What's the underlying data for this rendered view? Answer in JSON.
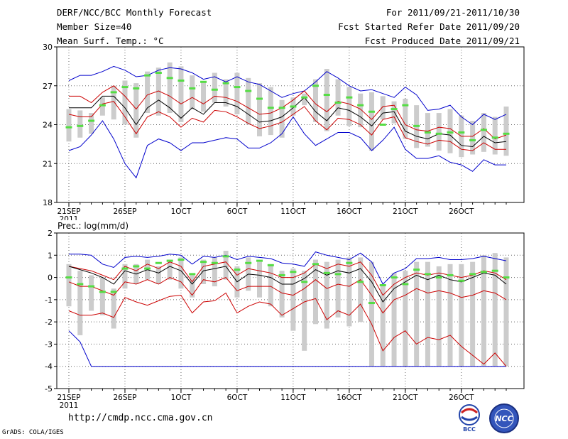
{
  "header": {
    "title": "DERF/NCC/BCC Monthly Forecast",
    "member_size": "Member Size=40",
    "variable": "Mean Surf. Temp.: °C",
    "period": "For 2011/09/21-2011/10/30",
    "started": "Fcst Started Refer Date 2011/09/20",
    "produced": "Fcst Produced Date 2011/09/21"
  },
  "footer": {
    "url": "http://cmdp.ncc.cma.gov.cn",
    "credit": "GrADS: COLA/IGES",
    "logo_bcc_text": "BCC",
    "logo_ncc_text": "NCC"
  },
  "colors": {
    "envelope": "#0000cc",
    "spread": "#cc0000",
    "ensemble_mean": "#000000",
    "member_box": "#cccccc",
    "median": "#55dd44",
    "grid": "#666666"
  },
  "chart_data": [
    {
      "type": "box",
      "id": "temperature",
      "title": "Mean Surf. Temp.: °C",
      "x_labels": [
        "21SEP",
        "26SEP",
        "1OCT",
        "6OCT",
        "11OCT",
        "16OCT",
        "21OCT",
        "26OCT"
      ],
      "x_label_days": [
        0,
        5,
        10,
        15,
        20,
        25,
        30,
        35
      ],
      "x_year_label": "2011",
      "ylim": [
        18,
        30
      ],
      "yticks": [
        18,
        21,
        24,
        27,
        30
      ],
      "days": 40,
      "max": [
        27.4,
        27.8,
        27.8,
        28.1,
        28.5,
        28.2,
        27.7,
        27.8,
        28.2,
        28.4,
        28.3,
        28.0,
        27.5,
        27.7,
        27.3,
        27.7,
        27.3,
        27.1,
        26.6,
        26.1,
        26.4,
        26.6,
        27.3,
        28.1,
        27.6,
        27.0,
        26.6,
        26.7,
        26.4,
        26.1,
        26.9,
        26.3,
        25.1,
        25.2,
        25.5,
        24.6,
        24.0,
        24.8,
        24.4,
        24.8
      ],
      "upper": [
        26.2,
        26.2,
        25.7,
        26.5,
        27.0,
        26.2,
        25.2,
        26.3,
        26.6,
        26.2,
        25.6,
        26.1,
        25.6,
        26.2,
        26.1,
        25.8,
        25.3,
        24.8,
        24.9,
        25.3,
        25.9,
        26.6,
        25.6,
        25.0,
        25.8,
        25.6,
        25.2,
        24.4,
        25.4,
        25.5,
        24.0,
        23.6,
        23.5,
        23.8,
        23.7,
        23.1,
        23.1,
        23.7,
        22.9,
        23.2
      ],
      "mean": [
        25.3,
        25.3,
        25.3,
        26.2,
        26.2,
        25.3,
        24.0,
        25.3,
        25.9,
        25.3,
        24.5,
        25.3,
        24.8,
        25.7,
        25.7,
        25.4,
        24.8,
        24.2,
        24.3,
        24.6,
        25.3,
        26.1,
        25.0,
        24.3,
        25.3,
        25.1,
        24.6,
        23.9,
        24.9,
        25.0,
        23.5,
        23.1,
        22.9,
        23.3,
        23.2,
        22.4,
        22.3,
        23.1,
        22.6,
        22.7
      ],
      "lower": [
        24.8,
        24.6,
        24.6,
        25.6,
        25.8,
        24.6,
        23.3,
        24.6,
        25.0,
        24.6,
        23.8,
        24.5,
        24.2,
        25.1,
        25.0,
        24.6,
        24.1,
        23.7,
        23.9,
        24.2,
        24.8,
        25.4,
        24.3,
        23.6,
        24.5,
        24.4,
        24.0,
        23.2,
        24.4,
        24.6,
        23.0,
        22.7,
        22.5,
        22.8,
        22.7,
        22.1,
        22.0,
        22.6,
        22.1,
        22.1
      ],
      "min": [
        22.0,
        22.3,
        23.2,
        24.3,
        22.9,
        21.0,
        19.9,
        22.4,
        22.9,
        22.6,
        22.0,
        22.6,
        22.6,
        22.8,
        23.0,
        22.9,
        22.2,
        22.2,
        22.6,
        23.3,
        24.6,
        23.3,
        22.4,
        22.9,
        23.4,
        23.4,
        23.0,
        22.0,
        22.8,
        23.8,
        22.1,
        21.4,
        21.4,
        21.6,
        21.1,
        20.9,
        20.4,
        21.3,
        20.9,
        20.9
      ],
      "box_hi": [
        25.2,
        25.1,
        24.9,
        26.1,
        27.0,
        27.4,
        27.2,
        28.1,
        28.4,
        28.8,
        28.5,
        27.8,
        27.3,
        28.0,
        27.5,
        28.0,
        27.6,
        27.2,
        26.9,
        25.9,
        26.1,
        26.4,
        27.5,
        28.3,
        27.5,
        26.9,
        26.4,
        26.5,
        26.2,
        25.8,
        26.0,
        25.5,
        24.9,
        24.9,
        25.2,
        24.7,
        24.3,
        24.9,
        24.6,
        25.4
      ],
      "box_lo": [
        22.7,
        23.0,
        23.3,
        24.7,
        24.4,
        24.0,
        23.0,
        24.9,
        24.7,
        24.9,
        24.2,
        25.2,
        25.0,
        25.7,
        25.4,
        24.8,
        24.0,
        23.1,
        23.2,
        23.0,
        24.7,
        25.5,
        24.2,
        23.5,
        24.7,
        23.9,
        23.8,
        22.0,
        24.4,
        24.1,
        22.9,
        22.2,
        22.3,
        22.0,
        21.8,
        21.5,
        21.7,
        21.9,
        21.7,
        21.6
      ],
      "median": [
        23.8,
        23.9,
        24.3,
        25.5,
        26.5,
        26.9,
        26.8,
        27.8,
        28.0,
        27.6,
        27.4,
        26.8,
        27.3,
        26.7,
        27.2,
        26.9,
        26.6,
        26.0,
        25.3,
        25.3,
        25.4,
        26.1,
        27.0,
        26.3,
        25.7,
        26.1,
        25.5,
        25.0,
        24.0,
        25.2,
        25.5,
        23.9,
        23.4,
        23.3,
        23.4,
        23.4,
        22.8,
        23.6,
        23.0,
        23.3
      ]
    },
    {
      "type": "box",
      "id": "precipitation",
      "title": "Prec.: log(mm/d)",
      "x_labels": [
        "21SEP",
        "26SEP",
        "1OCT",
        "6OCT",
        "11OCT",
        "16OCT",
        "21OCT",
        "26OCT"
      ],
      "x_label_days": [
        0,
        5,
        10,
        15,
        20,
        25,
        30,
        35
      ],
      "x_year_label": "2011",
      "ylim": [
        -5,
        2
      ],
      "yticks": [
        -5,
        -4,
        -3,
        -2,
        -1,
        0,
        1,
        2
      ],
      "days": 40,
      "max": [
        1.05,
        1.05,
        1.0,
        0.6,
        0.45,
        0.9,
        0.95,
        0.9,
        0.95,
        1.05,
        1.0,
        0.6,
        0.95,
        0.9,
        1.0,
        0.8,
        0.95,
        0.9,
        0.85,
        0.65,
        0.6,
        0.5,
        1.15,
        1.0,
        0.9,
        0.8,
        1.1,
        0.7,
        -0.3,
        0.2,
        0.4,
        0.85,
        0.85,
        0.9,
        0.8,
        0.8,
        0.85,
        0.95,
        0.85,
        0.75
      ],
      "upper": [
        0.5,
        0.4,
        0.3,
        0.1,
        -0.1,
        0.5,
        0.3,
        0.6,
        0.4,
        0.7,
        0.5,
        -0.2,
        0.5,
        0.6,
        0.7,
        0.1,
        0.4,
        0.3,
        0.2,
        0.0,
        0.0,
        0.2,
        0.6,
        0.4,
        0.6,
        0.5,
        0.7,
        0.1,
        -0.8,
        -0.3,
        0.0,
        0.2,
        0.1,
        0.2,
        0.1,
        0.0,
        0.1,
        0.3,
        0.2,
        -0.1
      ],
      "mean": [
        0.5,
        0.35,
        0.2,
        0.0,
        -0.3,
        0.3,
        0.15,
        0.35,
        0.2,
        0.5,
        0.3,
        -0.3,
        0.3,
        0.4,
        0.5,
        -0.2,
        0.15,
        0.1,
        0.0,
        -0.3,
        -0.3,
        -0.05,
        0.35,
        0.1,
        0.3,
        0.2,
        0.4,
        -0.2,
        -1.1,
        -0.5,
        -0.2,
        0.1,
        -0.1,
        0.1,
        -0.1,
        -0.2,
        0.0,
        0.2,
        0.1,
        -0.3
      ],
      "lower": [
        -0.2,
        -0.4,
        -0.4,
        -0.6,
        -0.8,
        -0.2,
        -0.3,
        -0.1,
        -0.3,
        0.0,
        -0.2,
        -0.8,
        -0.1,
        -0.2,
        0.0,
        -0.6,
        -0.4,
        -0.4,
        -0.4,
        -0.7,
        -0.8,
        -0.5,
        -0.1,
        -0.5,
        -0.3,
        -0.4,
        -0.1,
        -0.8,
        -1.6,
        -1.0,
        -0.8,
        -0.5,
        -0.7,
        -0.6,
        -0.7,
        -0.9,
        -0.8,
        -0.6,
        -0.7,
        -1.0
      ],
      "min": [
        -2.4,
        -2.9,
        -4.0,
        -4.0,
        -4.0,
        -4.0,
        -4.0,
        -4.0,
        -4.0,
        -4.0,
        -4.0,
        -4.0,
        -4.0,
        -4.0,
        -4.0,
        -4.0,
        -4.0,
        -4.0,
        -4.0,
        -4.0,
        -4.0,
        -4.0,
        -4.0,
        -4.0,
        -4.0,
        -4.0,
        -4.0,
        -4.0,
        -4.0,
        -4.0,
        -4.0,
        -4.0,
        -4.0,
        -4.0,
        -4.0,
        -4.0,
        -4.0,
        -4.0,
        -4.0,
        -4.0
      ],
      "low_red": [
        -1.5,
        -1.7,
        -1.7,
        -1.6,
        -1.8,
        -0.9,
        -1.1,
        -1.25,
        -1.05,
        -0.85,
        -0.8,
        -1.6,
        -1.1,
        -1.05,
        -0.7,
        -1.6,
        -1.3,
        -1.1,
        -1.2,
        -1.7,
        -1.4,
        -1.1,
        -0.95,
        -1.9,
        -1.5,
        -1.7,
        -1.2,
        -2.1,
        -3.3,
        -2.7,
        -2.4,
        -3.0,
        -2.7,
        -2.8,
        -2.6,
        -3.1,
        -3.5,
        -3.9,
        -3.4,
        -4.0
      ],
      "box_hi": [
        0.6,
        0.3,
        0.1,
        0.0,
        -0.5,
        0.6,
        0.6,
        0.8,
        0.5,
        0.8,
        0.9,
        0.1,
        0.8,
        0.9,
        1.2,
        0.5,
        0.9,
        0.7,
        0.6,
        0.3,
        0.4,
        0.3,
        0.8,
        0.7,
        0.8,
        0.9,
        0.9,
        0.7,
        -0.3,
        0.2,
        0.3,
        0.7,
        0.7,
        0.5,
        0.6,
        0.6,
        0.7,
        1.0,
        1.1,
        0.9
      ],
      "box_lo": [
        -1.3,
        -2.6,
        -1.5,
        -1.7,
        -2.3,
        -0.5,
        -0.3,
        -0.1,
        -0.3,
        -0.1,
        -0.5,
        -0.9,
        -0.3,
        -0.4,
        -0.1,
        -0.9,
        -0.6,
        -0.9,
        -1.3,
        -1.8,
        -2.4,
        -3.3,
        -2.1,
        -2.3,
        -1.8,
        -2.2,
        -2.0,
        -4.0,
        -4.0,
        -4.0,
        -4.0,
        -4.0,
        -4.0,
        -4.0,
        -4.0,
        -4.0,
        -4.0,
        -4.0,
        -4.0,
        -4.0
      ],
      "median": [
        0.0,
        -0.3,
        -0.4,
        -0.65,
        -0.65,
        0.4,
        0.5,
        0.4,
        0.65,
        0.75,
        0.8,
        0.15,
        0.7,
        0.65,
        0.95,
        0.35,
        0.65,
        0.75,
        0.55,
        0.1,
        0.25,
        -0.2,
        0.6,
        0.2,
        0.15,
        0.65,
        -0.2,
        -1.15,
        -0.35,
        0.0,
        -0.3,
        0.35,
        0.15,
        0.0,
        0.1,
        -0.15,
        0.15,
        0.25,
        0.3,
        0.0
      ]
    }
  ]
}
